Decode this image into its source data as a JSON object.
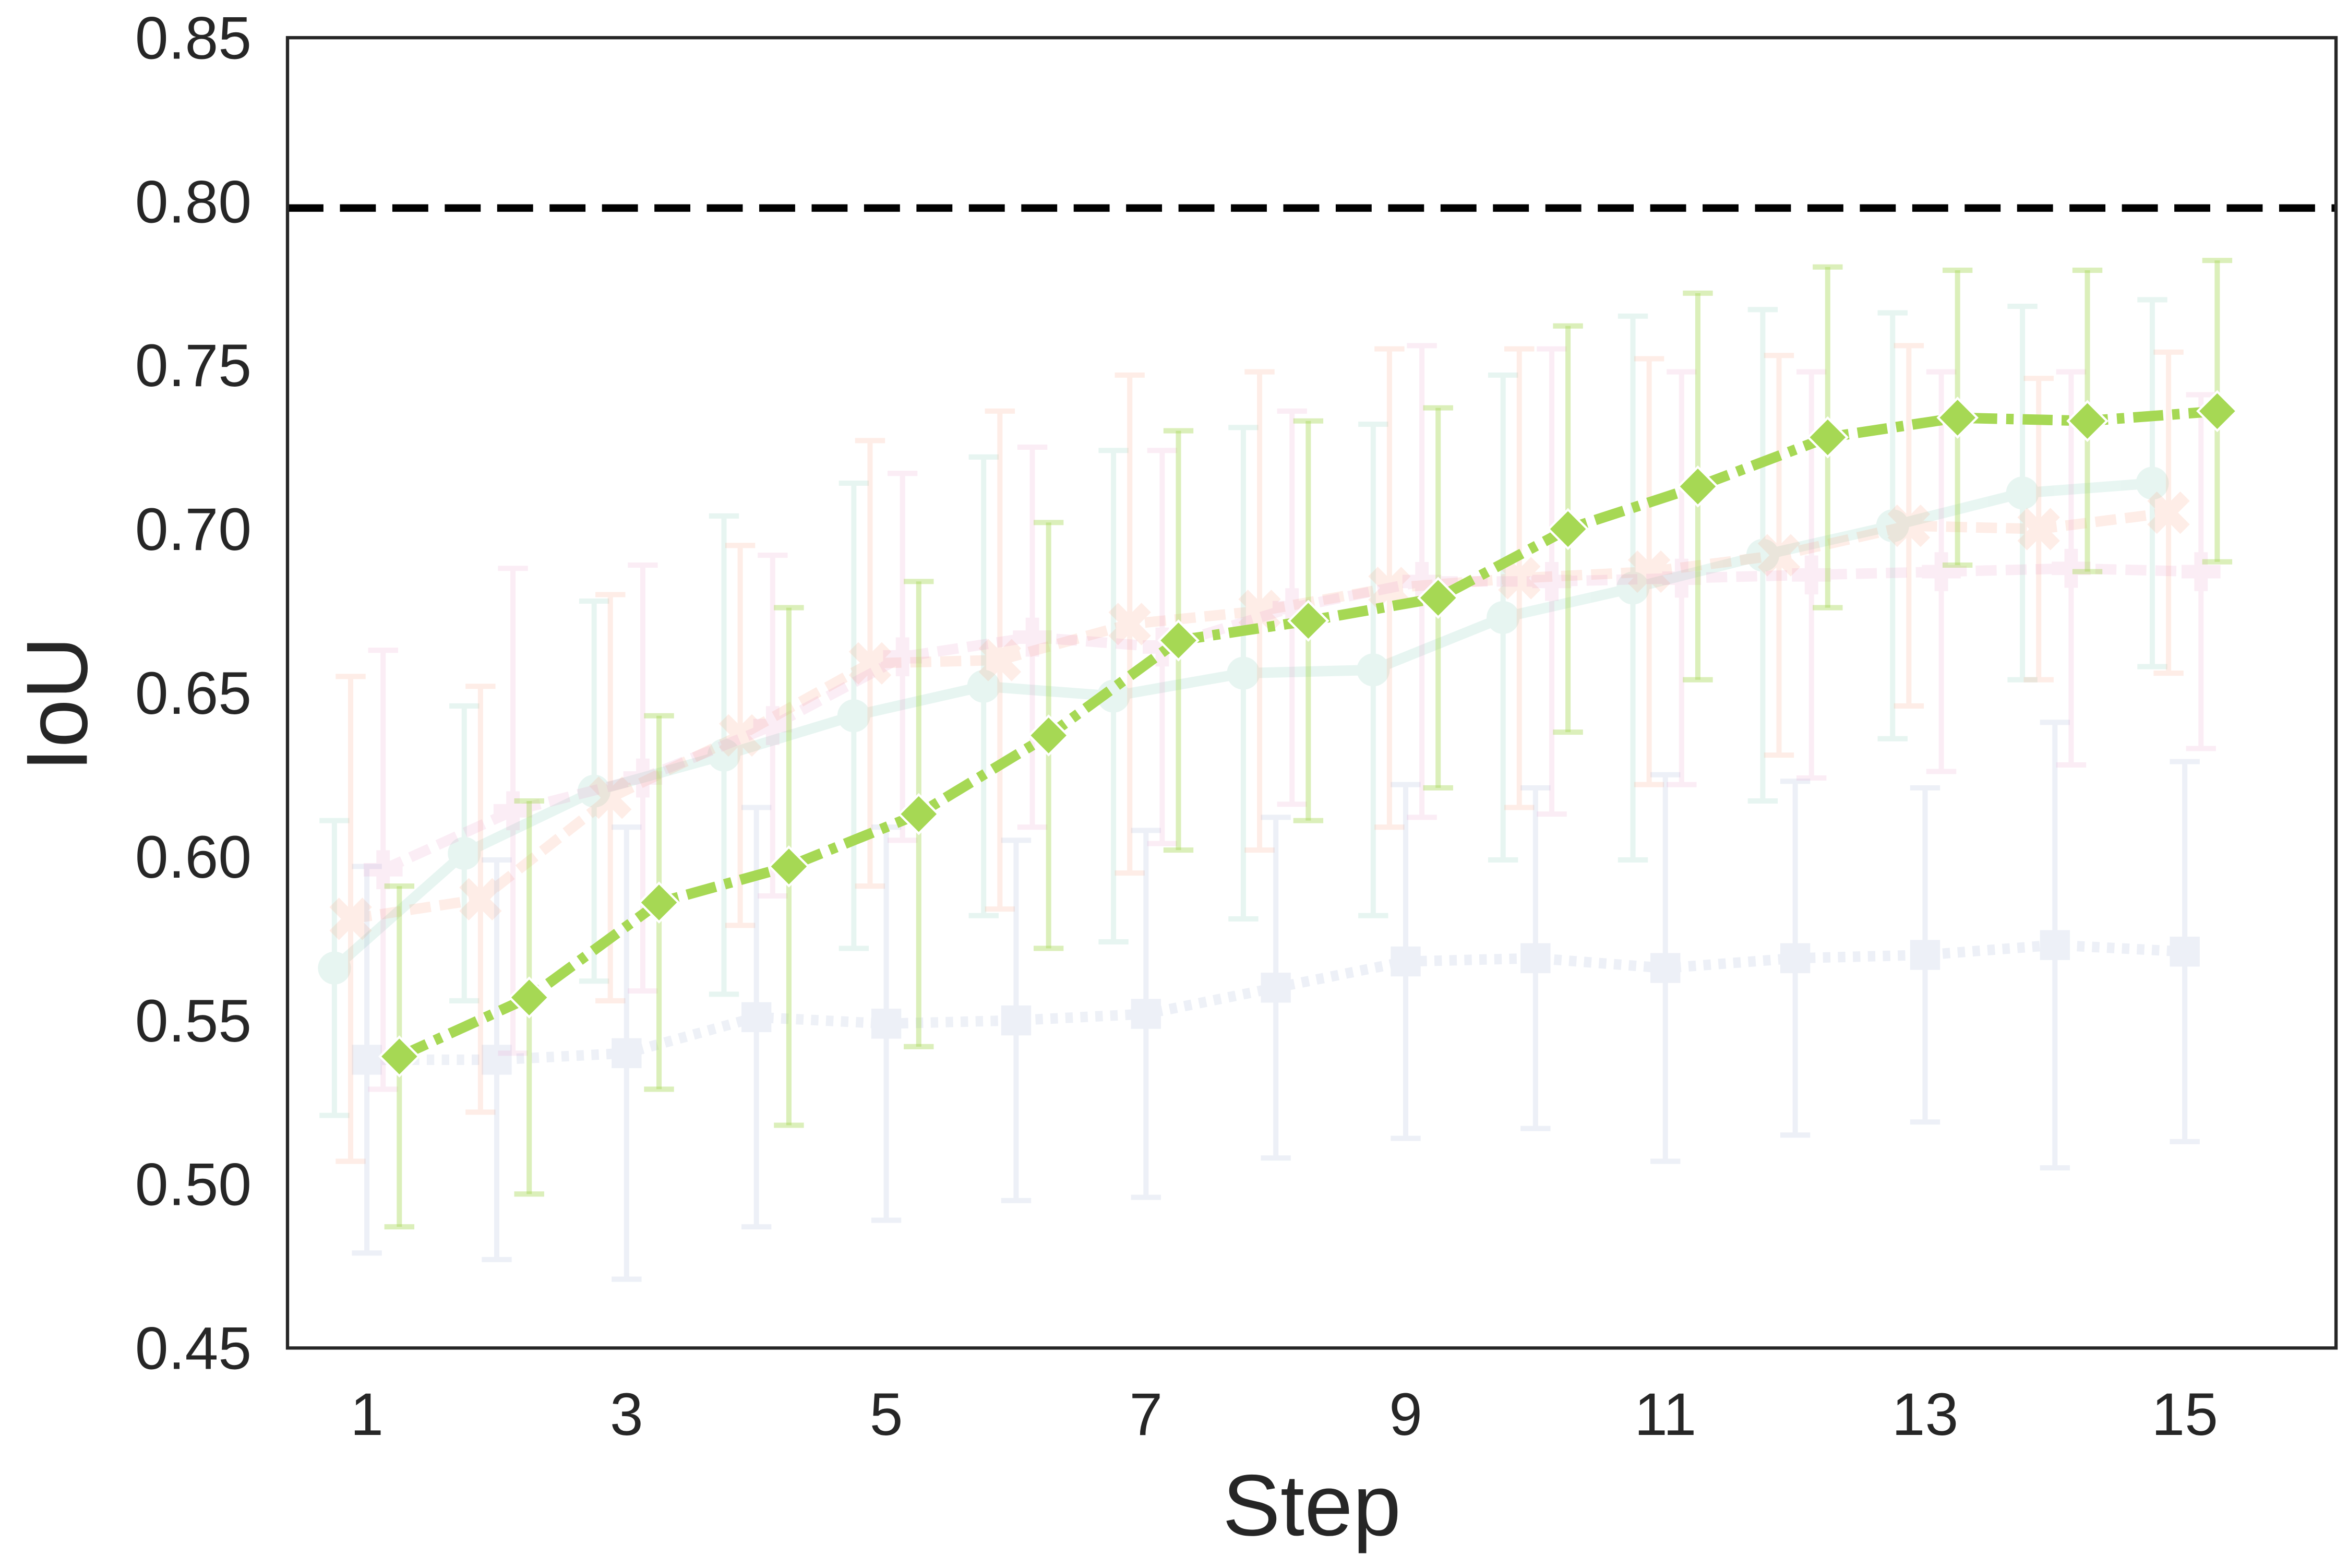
{
  "chart_data": {
    "type": "line",
    "title": "",
    "xlabel": "Step",
    "ylabel": "IoU",
    "x": [
      1,
      2,
      3,
      4,
      5,
      6,
      7,
      8,
      9,
      10,
      11,
      12,
      13,
      14,
      15
    ],
    "x_ticks": [
      "1",
      "3",
      "5",
      "7",
      "9",
      "11",
      "13",
      "15"
    ],
    "x_tick_values": [
      1,
      3,
      5,
      7,
      9,
      11,
      13,
      15
    ],
    "y_ticks": [
      "0.45",
      "0.50",
      "0.55",
      "0.60",
      "0.65",
      "0.70",
      "0.75",
      "0.80",
      "0.85"
    ],
    "y_tick_values": [
      0.45,
      0.5,
      0.55,
      0.6,
      0.65,
      0.7,
      0.75,
      0.8,
      0.85
    ],
    "ylim": [
      0.45,
      0.85
    ],
    "xlim": [
      0.4,
      16.2
    ],
    "grid": false,
    "legend": null,
    "reference_line": {
      "y": 0.798,
      "style": "dashed",
      "color": "#000000"
    },
    "series": [
      {
        "name": "teal-circle",
        "color": "#66c2a5",
        "marker": "circle",
        "linestyle": "solid",
        "alpha": 0.15,
        "dodge": -0.25,
        "values": [
          0.566,
          0.601,
          0.62,
          0.631,
          0.643,
          0.652,
          0.649,
          0.656,
          0.657,
          0.673,
          0.682,
          0.692,
          0.701,
          0.711,
          0.714
        ],
        "err": [
          0.045,
          0.045,
          0.058,
          0.073,
          0.071,
          0.07,
          0.075,
          0.075,
          0.075,
          0.074,
          0.083,
          0.075,
          0.065,
          0.057,
          0.056
        ]
      },
      {
        "name": "orange-x",
        "color": "#fc8d62",
        "marker": "x",
        "linestyle": "dashed",
        "alpha": 0.15,
        "dodge": -0.125,
        "values": [
          0.581,
          0.587,
          0.618,
          0.637,
          0.659,
          0.66,
          0.671,
          0.675,
          0.682,
          0.685,
          0.687,
          0.692,
          0.701,
          0.7,
          0.705
        ],
        "err": [
          0.074,
          0.065,
          0.062,
          0.058,
          0.068,
          0.076,
          0.076,
          0.073,
          0.073,
          0.07,
          0.065,
          0.061,
          0.055,
          0.046,
          0.049
        ]
      },
      {
        "name": "blue-square",
        "color": "#8da0cb",
        "marker": "square",
        "linestyle": "dotted",
        "alpha": 0.15,
        "dodge": 0.0,
        "values": [
          0.538,
          0.538,
          0.54,
          0.551,
          0.549,
          0.55,
          0.552,
          0.56,
          0.568,
          0.569,
          0.566,
          0.569,
          0.57,
          0.573,
          0.571
        ],
        "err": [
          0.059,
          0.061,
          0.069,
          0.064,
          0.06,
          0.055,
          0.056,
          0.052,
          0.054,
          0.052,
          0.059,
          0.054,
          0.051,
          0.068,
          0.058
        ]
      },
      {
        "name": "pink-plus",
        "color": "#e78ac3",
        "marker": "plus",
        "linestyle": "dashed",
        "alpha": 0.15,
        "dodge": 0.125,
        "values": [
          0.596,
          0.614,
          0.624,
          0.64,
          0.661,
          0.667,
          0.664,
          0.676,
          0.684,
          0.684,
          0.685,
          0.686,
          0.687,
          0.688,
          0.687
        ],
        "err": [
          0.067,
          0.074,
          0.065,
          0.052,
          0.056,
          0.058,
          0.06,
          0.06,
          0.072,
          0.071,
          0.063,
          0.062,
          0.061,
          0.06,
          0.054
        ]
      },
      {
        "name": "green-diamond",
        "color": "#a6d854",
        "marker": "diamond",
        "linestyle": "dashdot",
        "alpha": 1.0,
        "dodge": 0.25,
        "values": [
          0.539,
          0.557,
          0.586,
          0.597,
          0.613,
          0.637,
          0.666,
          0.672,
          0.679,
          0.7,
          0.713,
          0.728,
          0.734,
          0.733,
          0.736
        ],
        "err": [
          0.052,
          0.06,
          0.057,
          0.079,
          0.071,
          0.065,
          0.064,
          0.061,
          0.058,
          0.062,
          0.059,
          0.052,
          0.045,
          0.046,
          0.046
        ]
      }
    ]
  }
}
